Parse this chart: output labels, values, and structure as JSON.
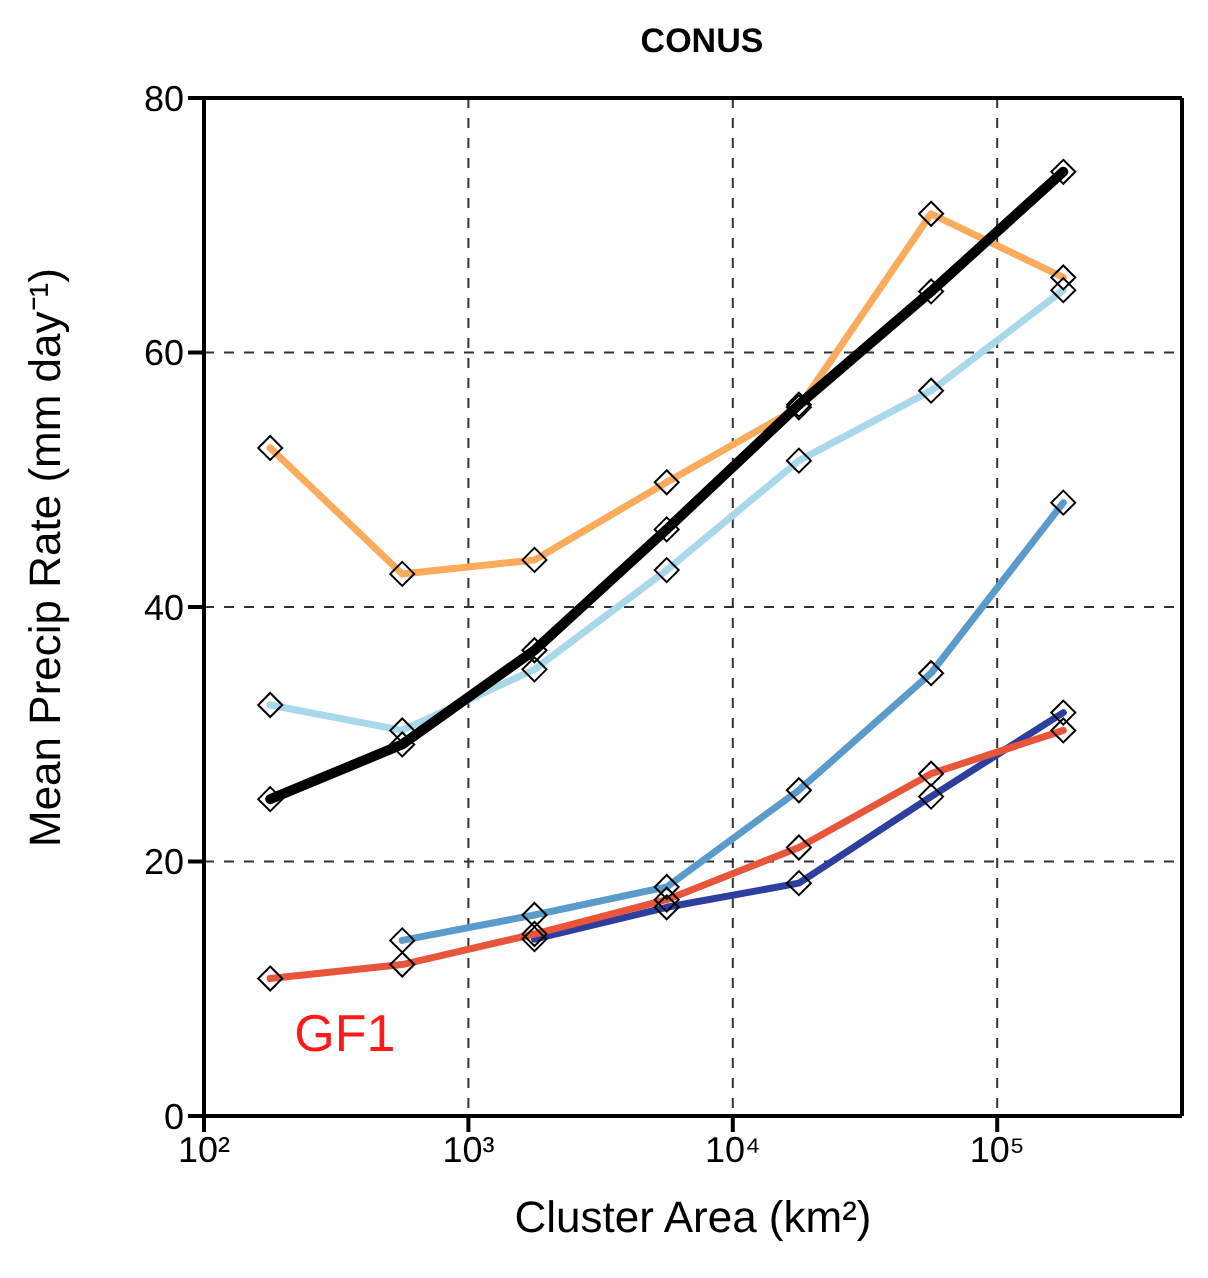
{
  "chart_data": {
    "type": "line",
    "title": "CONUS",
    "xlabel": "Cluster Area (km²)",
    "ylabel": "Mean Precip Rate (mm day⁻¹)",
    "x": [
      178,
      562,
      1778,
      5623,
      17783,
      56234,
      177828
    ],
    "series": [
      {
        "color": "#fbab5c",
        "values": [
          52.5,
          42.6,
          43.7,
          49.8,
          55.7,
          70.9,
          65.9
        ]
      },
      {
        "color": "#a8d8ea",
        "values": [
          32.3,
          30.3,
          35.1,
          42.9,
          51.5,
          57.0,
          64.9
        ]
      },
      {
        "color": "#000000",
        "values": [
          24.9,
          29.2,
          36.6,
          46.1,
          55.9,
          64.8,
          74.2
        ]
      },
      {
        "color": "#5b9bcc",
        "values": [
          null,
          13.8,
          15.8,
          18.0,
          25.6,
          34.8,
          48.2
        ]
      },
      {
        "color": "#2e3e9e",
        "values": [
          null,
          null,
          13.9,
          16.4,
          18.3,
          25.1,
          31.7
        ]
      },
      {
        "name": "GF1",
        "color": "#e8553a",
        "values": [
          10.8,
          11.9,
          14.3,
          17.0,
          21.1,
          26.9,
          30.3
        ]
      }
    ],
    "log": "x",
    "xlim": [
      100,
      500000
    ],
    "xticks": [
      {
        "value": 100,
        "label": "10²"
      },
      {
        "value": 1000,
        "label": "10³"
      },
      {
        "value": 10000,
        "label": "10⁴"
      },
      {
        "value": 100000,
        "label": "10⁵"
      }
    ],
    "ylim": [
      0,
      80
    ],
    "yticks": [
      0,
      20,
      40,
      60,
      80
    ],
    "grid": true,
    "marker": "diamond",
    "line_style": "solid"
  }
}
